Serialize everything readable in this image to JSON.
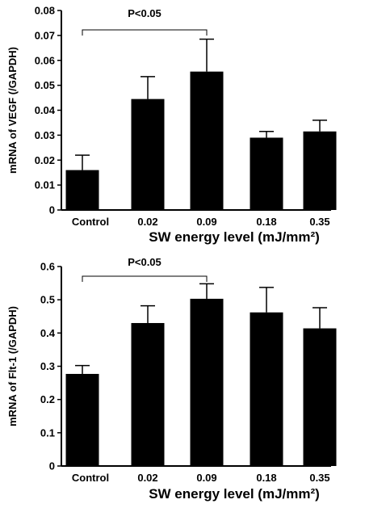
{
  "chart_data": [
    {
      "type": "bar",
      "categories": [
        "Control",
        "0.02",
        "0.09",
        "0.18",
        "0.35"
      ],
      "values": [
        0.016,
        0.0445,
        0.0555,
        0.029,
        0.0315
      ],
      "errors": [
        0.006,
        0.009,
        0.013,
        0.0025,
        0.0045
      ],
      "ylabel": "mRNA  of  VEGF  (/GAPDH)",
      "xlabel": "SW  energy  level  (mJ/mm²)",
      "ylim": [
        0,
        0.08
      ],
      "yticks": [
        "0",
        "0.01",
        "0.02",
        "0.03",
        "0.04",
        "0.05",
        "0.06",
        "0.07",
        "0.08"
      ],
      "significance": {
        "label": "P<0.05",
        "from": "Control",
        "to": "0.09"
      },
      "bar_color": "#000000"
    },
    {
      "type": "bar",
      "categories": [
        "Control",
        "0.02",
        "0.09",
        "0.18",
        "0.35"
      ],
      "values": [
        0.277,
        0.43,
        0.503,
        0.462,
        0.414
      ],
      "errors": [
        0.025,
        0.052,
        0.045,
        0.075,
        0.062
      ],
      "ylabel": "mRNA  of  Flt-1  (/GAPDH)",
      "xlabel": "SW  energy  level  (mJ/mm²)",
      "ylim": [
        0,
        0.6
      ],
      "yticks": [
        "0",
        "0.1",
        "0.2",
        "0.3",
        "0.4",
        "0.5",
        "0.6"
      ],
      "significance": {
        "label": "P<0.05",
        "from": "Control",
        "to": "0.09"
      },
      "bar_color": "#000000"
    }
  ]
}
